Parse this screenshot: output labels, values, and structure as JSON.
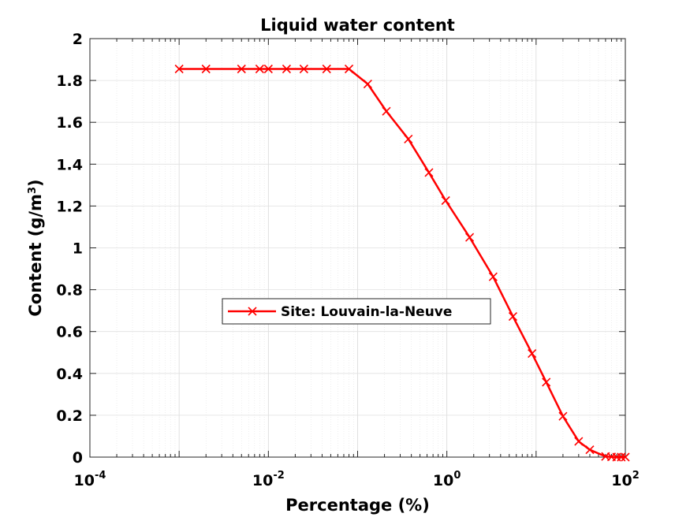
{
  "chart_data": {
    "type": "line",
    "title": "Liquid water content",
    "xlabel": "Percentage (%)",
    "ylabel": "Content (g/m",
    "ylabel_sup": "3",
    "ylabel_close": ")",
    "xscale": "log",
    "xlim": [
      0.0001,
      100
    ],
    "ylim": [
      0,
      2
    ],
    "grid": "on (major and minor)",
    "legend_position": "center-left",
    "x_ticks": [
      {
        "base": "10",
        "exp": "-4",
        "value": 0.0001
      },
      {
        "base": "10",
        "exp": "-2",
        "value": 0.01
      },
      {
        "base": "10",
        "exp": "0",
        "value": 1
      },
      {
        "base": "10",
        "exp": "2",
        "value": 100
      }
    ],
    "y_ticks": [
      "0",
      "0.2",
      "0.4",
      "0.6",
      "0.8",
      "1",
      "1.2",
      "1.4",
      "1.6",
      "1.8",
      "2"
    ],
    "series": [
      {
        "name": "Site: Louvain-la-Neuve",
        "color": "#ff0000",
        "marker": "x",
        "x": [
          0.001,
          0.002,
          0.005,
          0.008,
          0.01,
          0.016,
          0.025,
          0.045,
          0.08,
          0.13,
          0.21,
          0.37,
          0.63,
          0.97,
          1.8,
          3.3,
          5.5,
          9.0,
          13.0,
          20.0,
          30.0,
          40.0,
          60.0,
          70.0,
          80.0,
          90.0,
          100.0
        ],
        "y": [
          1.855,
          1.855,
          1.855,
          1.855,
          1.855,
          1.855,
          1.855,
          1.855,
          1.855,
          1.783,
          1.653,
          1.52,
          1.36,
          1.226,
          1.05,
          0.862,
          0.672,
          0.495,
          0.358,
          0.195,
          0.075,
          0.035,
          0.003,
          0.001,
          0.0,
          0.0,
          0.0
        ]
      }
    ]
  }
}
